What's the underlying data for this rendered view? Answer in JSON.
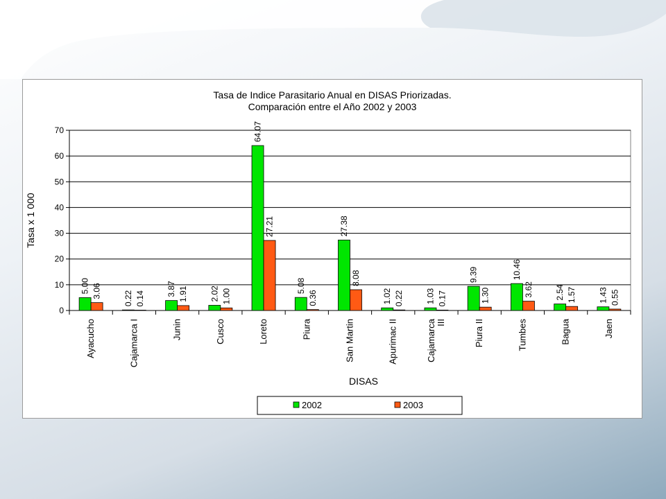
{
  "colors": {
    "series_2002": "#00e600",
    "series_2003": "#ff5a14",
    "gridline": "#000000"
  },
  "chart_data": {
    "type": "bar",
    "title_lines": [
      "Tasa de Indice Parasitario Anual en DISAS Priorizadas.",
      "Comparación entre el Año 2002 y 2003"
    ],
    "xlabel": "DISAS",
    "ylabel": "Tasa x 1 000",
    "ylim": [
      0,
      70
    ],
    "yticks": [
      0,
      10,
      20,
      30,
      40,
      50,
      60,
      70
    ],
    "grid": true,
    "legend_position": "bottom",
    "categories": [
      [
        "Ayacucho"
      ],
      [
        "Cajamarca I"
      ],
      [
        "Junin"
      ],
      [
        "Cusco"
      ],
      [
        "Loreto"
      ],
      [
        "Piura"
      ],
      [
        "San Martin"
      ],
      [
        "Apurimac II"
      ],
      [
        "Cajamarca",
        "III"
      ],
      [
        "Piura II"
      ],
      [
        "Tumbes"
      ],
      [
        "Bagua"
      ],
      [
        "Jaen"
      ]
    ],
    "series": [
      {
        "name": "2002",
        "values": [
          5.0,
          0.22,
          3.87,
          2.02,
          64.07,
          5.08,
          27.38,
          1.02,
          1.03,
          9.39,
          10.46,
          2.54,
          1.43
        ],
        "labels": [
          "5.00",
          "0.22",
          "3.87",
          "2.02",
          "64.07",
          "5.08",
          "27.38",
          "1.02",
          "1.03",
          "9.39",
          "10.46",
          "2.54",
          "1.43"
        ]
      },
      {
        "name": "2003",
        "values": [
          3.06,
          0.14,
          1.91,
          1.0,
          27.21,
          0.36,
          8.08,
          0.22,
          0.17,
          1.3,
          3.62,
          1.57,
          0.55
        ],
        "labels": [
          "3.06",
          "0.14",
          "1.91",
          "1.00",
          "27.21",
          "0.36",
          "8.08",
          "0.22",
          "0.17",
          "1.30",
          "3.62",
          "1.57",
          "0.55"
        ]
      }
    ]
  }
}
